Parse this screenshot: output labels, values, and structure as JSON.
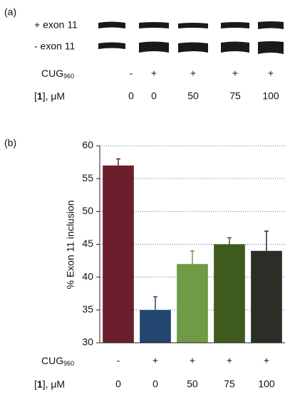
{
  "panel_a": {
    "label": "(a)",
    "band_labels": [
      "+ exon 11",
      "- exon 11"
    ],
    "cug_label": "CUG",
    "cug_subscript": "960",
    "cug_states": [
      "-",
      "+",
      "+",
      "+",
      "+"
    ],
    "dose_label_open": "[",
    "dose_label_bold": "1",
    "dose_label_close": "], μM",
    "doses": [
      "0",
      "0",
      "50",
      "75",
      "100"
    ]
  },
  "chart_data": {
    "type": "bar",
    "panel_label": "(b)",
    "y_label": "% Exon 11 inclusion",
    "categories": [
      null,
      null,
      null,
      null,
      null
    ],
    "values": [
      57,
      35,
      42,
      45,
      44
    ],
    "errors": [
      1,
      2,
      2,
      1,
      3
    ],
    "colors": [
      "#6b1e2c",
      "#234670",
      "#6f9a46",
      "#3e5a1d",
      "#2b2e26"
    ],
    "ylim": [
      30,
      60
    ],
    "yticks": [
      30,
      35,
      40,
      45,
      50,
      55,
      60
    ],
    "grid": true,
    "cug_label": "CUG",
    "cug_subscript": "960",
    "cug_states": [
      "-",
      "+",
      "+",
      "+",
      "+"
    ],
    "dose_label_open": "[",
    "dose_label_bold": "1",
    "dose_label_close": "], μM",
    "doses": [
      "0",
      "0",
      "50",
      "75",
      "100"
    ]
  }
}
